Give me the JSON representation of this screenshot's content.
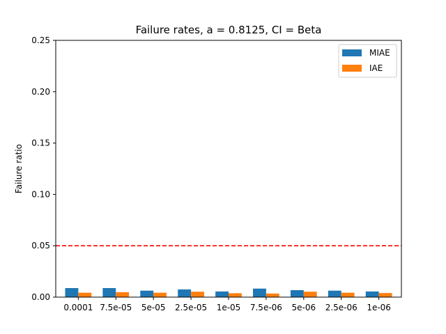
{
  "chart_data": {
    "type": "bar",
    "title": "Failure rates, a = 0.8125, CI = Beta",
    "xlabel": "",
    "ylabel": "Failure ratio",
    "categories": [
      "0.0001",
      "7.5e-05",
      "5e-05",
      "2.5e-05",
      "1e-05",
      "7.5e-06",
      "5e-06",
      "2.5e-06",
      "1e-06"
    ],
    "series": [
      {
        "name": "MIAE",
        "color": "#1f77b4",
        "values": [
          0.0088,
          0.0088,
          0.0063,
          0.0075,
          0.0055,
          0.0083,
          0.0068,
          0.0063,
          0.0055
        ]
      },
      {
        "name": "IAE",
        "color": "#ff7f0e",
        "values": [
          0.0043,
          0.0048,
          0.0043,
          0.0053,
          0.0038,
          0.0035,
          0.0053,
          0.0043,
          0.004
        ]
      }
    ],
    "ylim": [
      0,
      0.25
    ],
    "yticks": [
      "0.00",
      "0.05",
      "0.10",
      "0.15",
      "0.20",
      "0.25"
    ],
    "reference_line": {
      "y": 0.05,
      "color": "#ff0000",
      "style": "dashed"
    },
    "legend_position": "top-right",
    "grid": false
  }
}
